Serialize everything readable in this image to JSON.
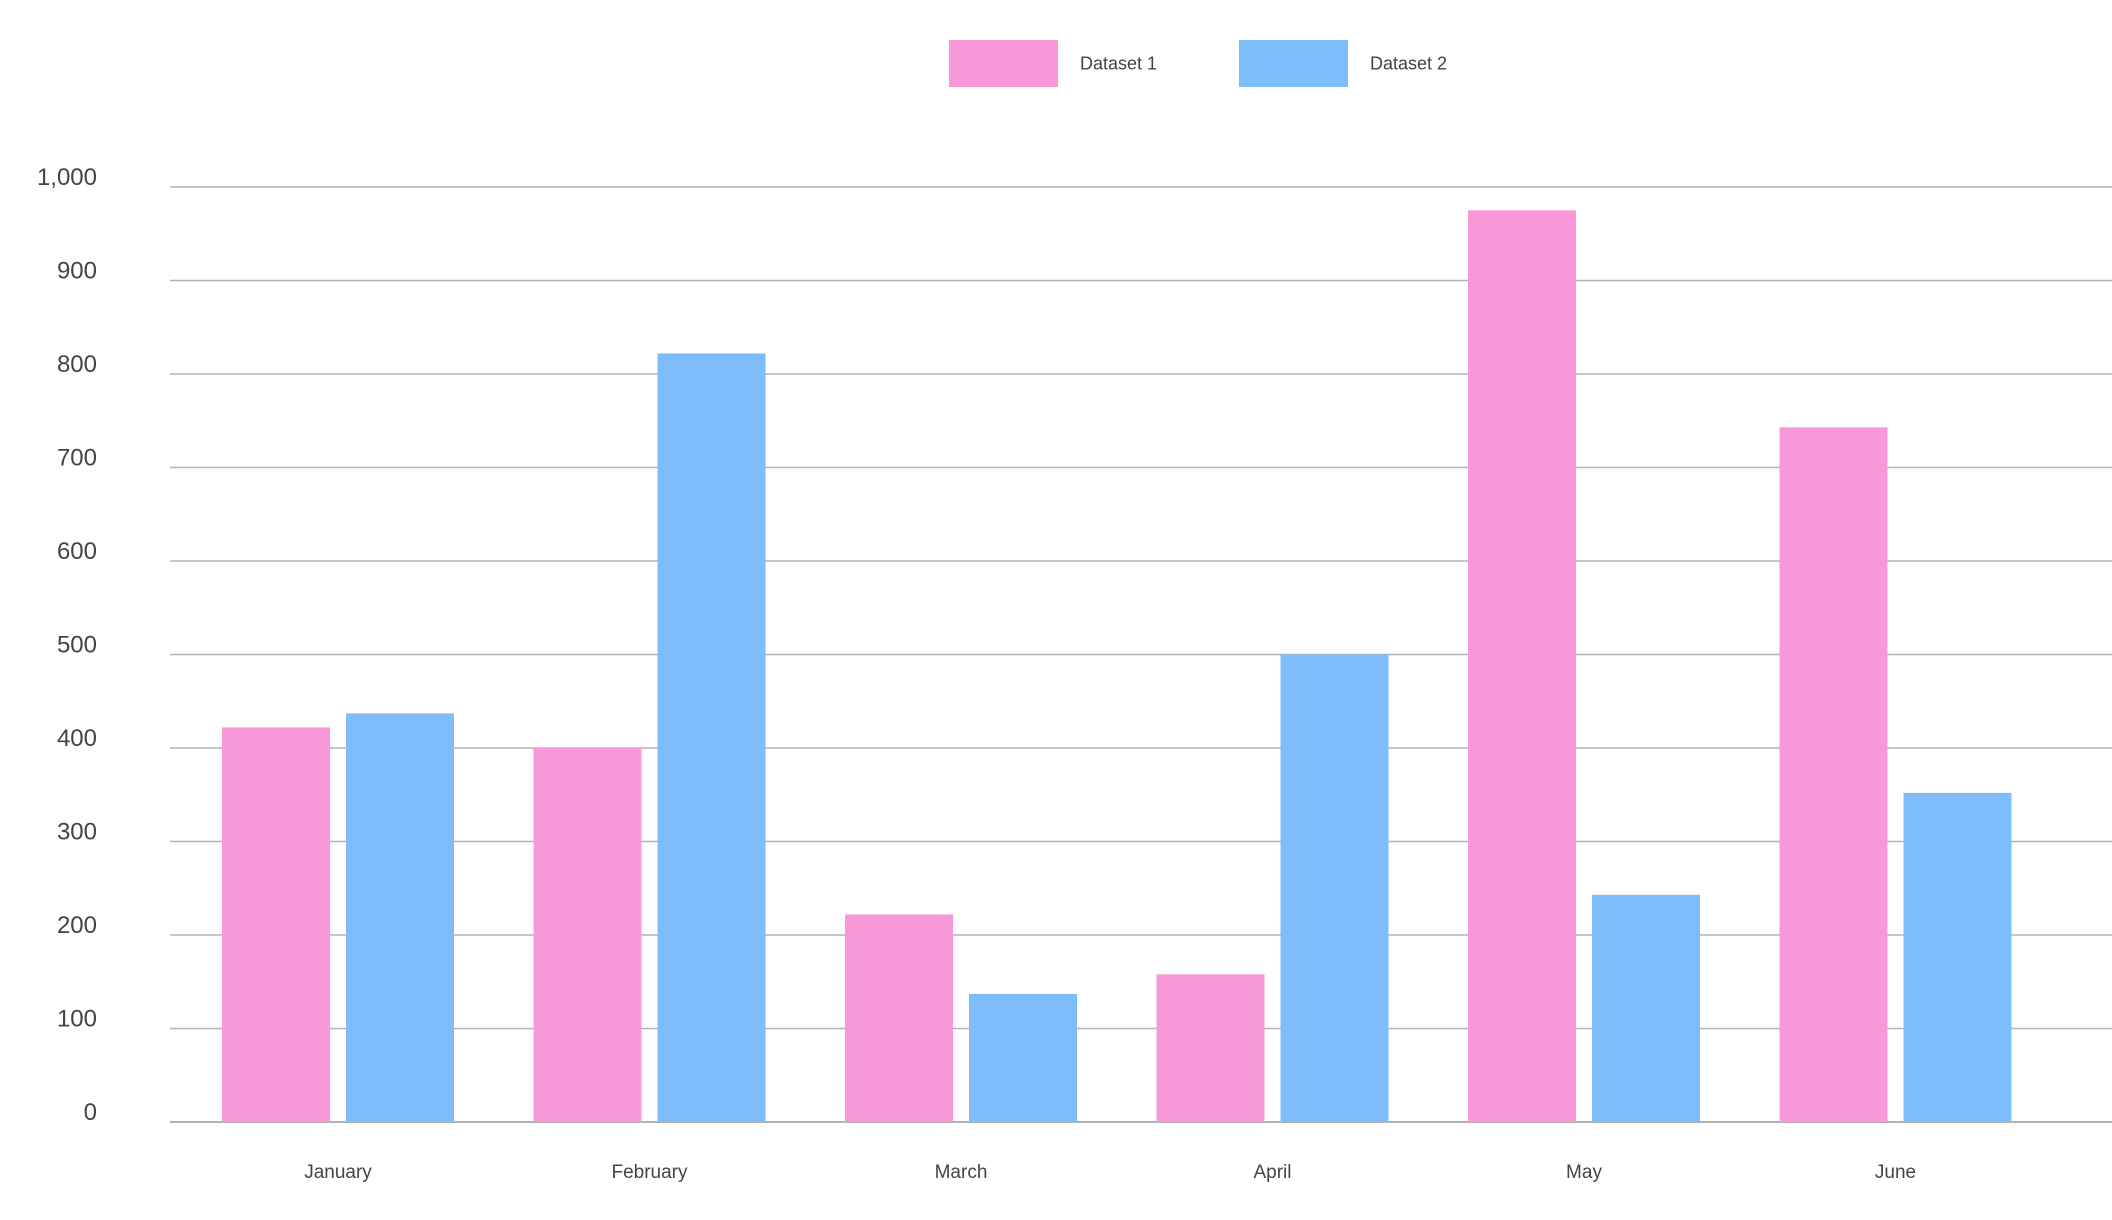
{
  "chart_data": {
    "type": "bar",
    "title": "",
    "xlabel": "",
    "ylabel": "",
    "categories": [
      "January",
      "February",
      "March",
      "April",
      "May",
      "June"
    ],
    "series": [
      {
        "name": "Dataset 1",
        "color": "#f898d8",
        "values": [
          422,
          400,
          222,
          158,
          975,
          743
        ]
      },
      {
        "name": "Dataset 2",
        "color": "#7dbdf9",
        "values": [
          437,
          822,
          137,
          500,
          243,
          352
        ]
      }
    ],
    "ylim": [
      0,
      1000
    ],
    "yticks": [
      0,
      100,
      200,
      300,
      400,
      500,
      600,
      700,
      800,
      900,
      1000
    ],
    "ytick_labels": [
      "0",
      "100",
      "200",
      "300",
      "400",
      "500",
      "600",
      "700",
      "800",
      "900",
      "1,000"
    ],
    "grid": true,
    "legend_position": "top-center"
  }
}
